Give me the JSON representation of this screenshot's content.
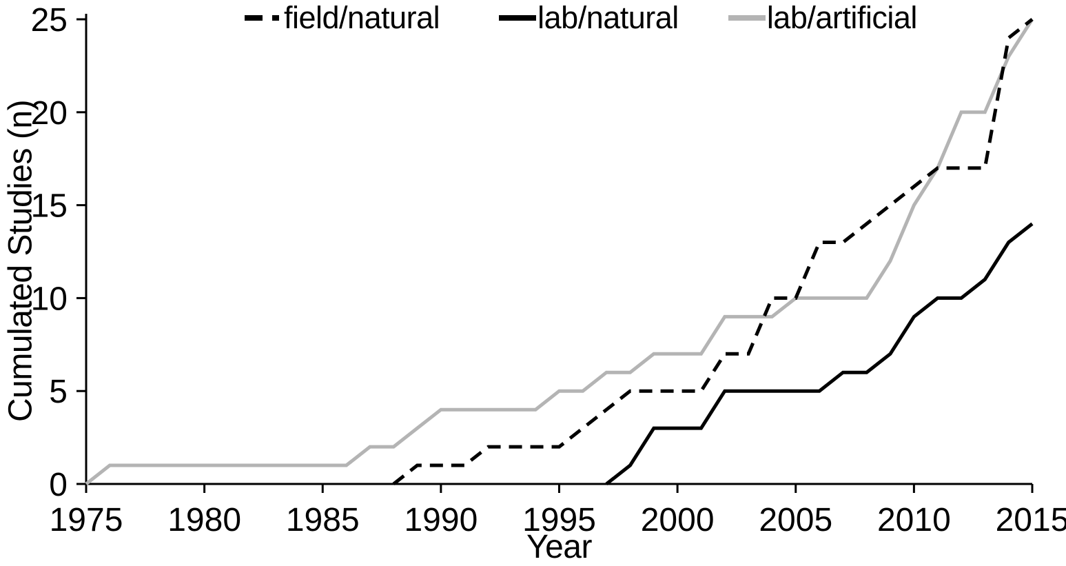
{
  "chart_data": {
    "type": "line",
    "title": "",
    "xlabel": "Year",
    "ylabel": "Cumulated  Studies (n)",
    "xlim": [
      1975,
      2015
    ],
    "ylim": [
      0,
      25
    ],
    "x_ticks": [
      1975,
      1980,
      1985,
      1990,
      1995,
      2000,
      2005,
      2010,
      2015
    ],
    "y_ticks": [
      0,
      5,
      10,
      15,
      20,
      25
    ],
    "grid": false,
    "legend_position": "top",
    "axis_color": "#000000",
    "background_color": "#ffffff",
    "series": [
      {
        "name": "field/natural",
        "style": "dashed",
        "color": "#000000",
        "start_year": 1988,
        "x": [
          1988,
          1989,
          1990,
          1991,
          1992,
          1993,
          1994,
          1995,
          1996,
          1997,
          1998,
          1999,
          2000,
          2001,
          2002,
          2003,
          2004,
          2005,
          2006,
          2007,
          2008,
          2009,
          2010,
          2011,
          2012,
          2013,
          2014,
          2015
        ],
        "values": [
          0,
          1,
          1,
          1,
          2,
          2,
          2,
          2,
          3,
          4,
          5,
          5,
          5,
          5,
          7,
          7,
          10,
          10,
          13,
          13,
          14,
          15,
          16,
          17,
          17,
          17,
          24,
          25
        ]
      },
      {
        "name": "lab/natural",
        "style": "solid",
        "color": "#000000",
        "start_year": 1997,
        "x": [
          1997,
          1998,
          1999,
          2000,
          2001,
          2002,
          2003,
          2004,
          2005,
          2006,
          2007,
          2008,
          2009,
          2010,
          2011,
          2012,
          2013,
          2014,
          2015
        ],
        "values": [
          0,
          1,
          3,
          3,
          3,
          5,
          5,
          5,
          5,
          5,
          6,
          6,
          7,
          9,
          10,
          10,
          11,
          13,
          14
        ]
      },
      {
        "name": "lab/artificial",
        "style": "solid",
        "color": "#b4b4b4",
        "start_year": 1975,
        "x": [
          1975,
          1976,
          1977,
          1978,
          1979,
          1980,
          1981,
          1982,
          1983,
          1984,
          1985,
          1986,
          1987,
          1988,
          1989,
          1990,
          1991,
          1992,
          1993,
          1994,
          1995,
          1996,
          1997,
          1998,
          1999,
          2000,
          2001,
          2002,
          2003,
          2004,
          2005,
          2006,
          2007,
          2008,
          2009,
          2010,
          2011,
          2012,
          2013,
          2014,
          2015
        ],
        "values": [
          0,
          1,
          1,
          1,
          1,
          1,
          1,
          1,
          1,
          1,
          1,
          1,
          2,
          2,
          3,
          4,
          4,
          4,
          4,
          4,
          5,
          5,
          6,
          6,
          7,
          7,
          7,
          9,
          9,
          9,
          10,
          10,
          10,
          10,
          12,
          15,
          17,
          20,
          20,
          23,
          25
        ]
      }
    ]
  }
}
